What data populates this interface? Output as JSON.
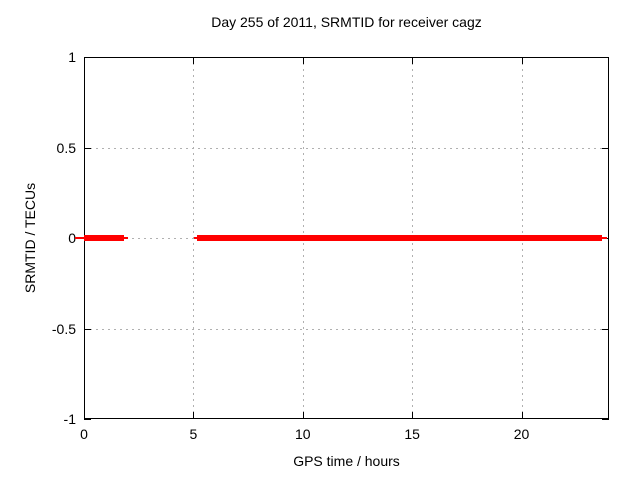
{
  "chart_data": {
    "type": "line",
    "title": "Day 255 of 2011, SRMTID for receiver cagz",
    "xlabel": "GPS time / hours",
    "ylabel": "SRMTID / TECUs",
    "xlim": [
      0,
      24
    ],
    "ylim": [
      -1,
      1
    ],
    "x_ticks": [
      0,
      5,
      10,
      15,
      20
    ],
    "x_tick_labels": [
      "0",
      "5",
      "10",
      "15",
      "20"
    ],
    "y_ticks": [
      -1,
      -0.5,
      0,
      0.5,
      1
    ],
    "y_tick_labels": [
      "-1",
      "-0.5",
      "0",
      "0.5",
      "1"
    ],
    "grid": true,
    "legend": "none",
    "series": [
      {
        "name": "SRMTID",
        "y_value": 0,
        "coverage_hours": [
          [
            0,
            2.0
          ],
          [
            5.0,
            23.9
          ]
        ],
        "gap_hours": [
          2.0,
          5.0
        ],
        "segments": [
          {
            "x1": -0.41,
            "x2": 0.0,
            "weight": "thin"
          },
          {
            "x1": 0.0,
            "x2": 1.83,
            "weight": "thick"
          },
          {
            "x1": 1.83,
            "x2": 2.01,
            "weight": "thin"
          },
          {
            "x1": 5.03,
            "x2": 5.17,
            "weight": "thin"
          },
          {
            "x1": 5.17,
            "x2": 23.69,
            "weight": "thick"
          },
          {
            "x1": 23.69,
            "x2": 23.9,
            "weight": "thin"
          }
        ]
      }
    ],
    "colors": {
      "line": "#ff0000",
      "grid": "#b0b0b0",
      "border": "#000000",
      "text": "#000000",
      "background": "#ffffff"
    }
  }
}
